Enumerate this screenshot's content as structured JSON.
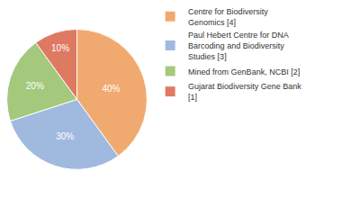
{
  "chart_data": {
    "type": "pie",
    "categories": [
      "Centre for Biodiversity Genomics [4]",
      "Paul Hebert Centre for DNA Barcoding and Biodiversity Studies [3]",
      "Mined from GenBank, NCBI [2]",
      "Gujarat Biodiversity Gene Bank [1]"
    ],
    "values": [
      40,
      30,
      20,
      10
    ],
    "value_labels": [
      "40%",
      "30%",
      "20%",
      "10%"
    ],
    "colors": [
      "#f0aa70",
      "#a0b9df",
      "#a4c97c",
      "#df7a62"
    ],
    "data_labels": true,
    "legend": "right"
  }
}
